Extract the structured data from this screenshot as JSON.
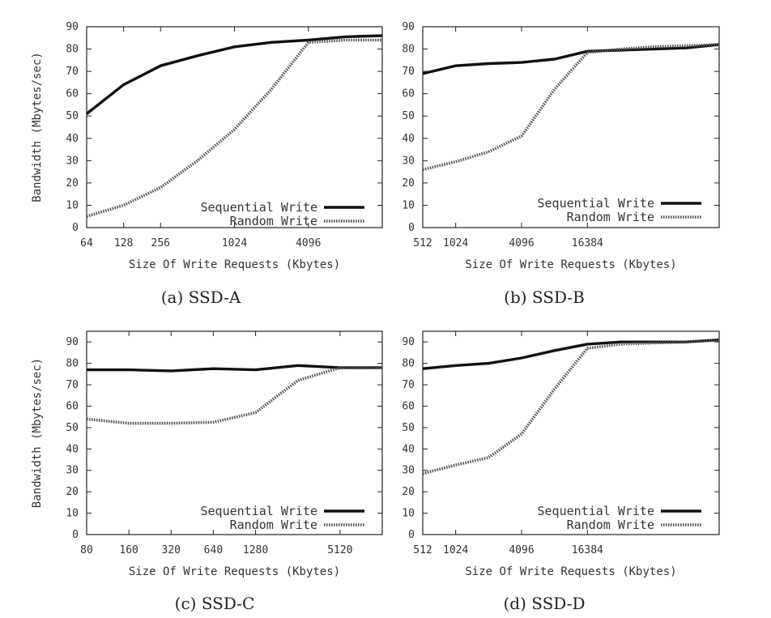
{
  "chart_data": [
    {
      "id": "a",
      "type": "line",
      "caption": "(a) SSD-A",
      "xlabel": "Size Of Write Requests (Kbytes)",
      "ylabel": "Bandwidth (Mbytes/sec)",
      "ylim": [
        0,
        90
      ],
      "yticks": [
        0,
        10,
        20,
        30,
        40,
        50,
        60,
        70,
        80,
        90
      ],
      "x_scale": "log2",
      "xlim": [
        64,
        16384
      ],
      "xticks": [
        64,
        128,
        256,
        1024,
        4096
      ],
      "legend": [
        "Sequential Write",
        "Random Write"
      ],
      "series": [
        {
          "name": "Sequential Write",
          "style": "solid",
          "x": [
            64,
            128,
            256,
            512,
            1024,
            2048,
            4096,
            8192,
            16384
          ],
          "values": [
            51,
            64,
            72.5,
            77,
            81,
            83,
            84,
            85.5,
            86
          ]
        },
        {
          "name": "Random Write",
          "style": "dotted",
          "x": [
            64,
            128,
            256,
            512,
            1024,
            2048,
            4096,
            8192,
            16384
          ],
          "values": [
            5,
            10,
            18,
            30,
            44,
            62,
            83,
            84,
            84
          ]
        }
      ]
    },
    {
      "id": "b",
      "type": "line",
      "caption": "(b) SSD-B",
      "xlabel": "Size Of Write Requests (Kbytes)",
      "ylabel": "",
      "ylim": [
        0,
        90
      ],
      "yticks": [
        0,
        10,
        20,
        30,
        40,
        50,
        60,
        70,
        80,
        90
      ],
      "x_scale": "log2",
      "xlim": [
        512,
        262144
      ],
      "xticks": [
        512,
        1024,
        4096,
        16384
      ],
      "legend": [
        "Sequential Write",
        "Random Write"
      ],
      "series": [
        {
          "name": "Sequential Write",
          "style": "solid",
          "x": [
            512,
            1024,
            2048,
            4096,
            8192,
            16384,
            32768,
            65536,
            131072,
            262144
          ],
          "values": [
            69,
            72.5,
            73.5,
            74,
            75.5,
            79,
            79.5,
            80,
            80.5,
            82
          ]
        },
        {
          "name": "Random Write",
          "style": "dotted",
          "x": [
            512,
            1024,
            2048,
            4096,
            8192,
            16384,
            32768,
            65536,
            131072,
            262144
          ],
          "values": [
            26,
            29.5,
            34,
            41,
            62,
            78.5,
            80,
            81,
            81.5,
            82
          ]
        }
      ]
    },
    {
      "id": "c",
      "type": "line",
      "caption": "(c) SSD-C",
      "xlabel": "Size Of Write Requests (Kbytes)",
      "ylabel": "Bandwidth (Mbytes/sec)",
      "ylim": [
        0,
        95
      ],
      "yticks": [
        0,
        10,
        20,
        30,
        40,
        50,
        60,
        70,
        80,
        90
      ],
      "x_scale": "log2",
      "xlim": [
        80,
        10240
      ],
      "xticks": [
        80,
        160,
        320,
        640,
        1280,
        5120
      ],
      "legend": [
        "Sequential Write",
        "Random Write"
      ],
      "series": [
        {
          "name": "Sequential Write",
          "style": "solid",
          "x": [
            80,
            160,
            320,
            640,
            1280,
            2560,
            5120,
            10240
          ],
          "values": [
            77,
            77,
            76.5,
            77.5,
            77,
            79,
            78,
            78
          ]
        },
        {
          "name": "Random Write",
          "style": "dotted",
          "x": [
            80,
            160,
            320,
            640,
            1280,
            2560,
            5120,
            10240
          ],
          "values": [
            54,
            52,
            52,
            52.5,
            57,
            72,
            78,
            78
          ]
        }
      ]
    },
    {
      "id": "d",
      "type": "line",
      "caption": "(d) SSD-D",
      "xlabel": "Size Of Write Requests (Kbytes)",
      "ylabel": "",
      "ylim": [
        0,
        95
      ],
      "yticks": [
        0,
        10,
        20,
        30,
        40,
        50,
        60,
        70,
        80,
        90
      ],
      "x_scale": "log2",
      "xlim": [
        512,
        262144
      ],
      "xticks": [
        512,
        1024,
        4096,
        16384
      ],
      "legend": [
        "Sequential Write",
        "Random Write"
      ],
      "series": [
        {
          "name": "Sequential Write",
          "style": "solid",
          "x": [
            512,
            1024,
            2048,
            4096,
            8192,
            16384,
            32768,
            65536,
            131072,
            262144
          ],
          "values": [
            77.5,
            79,
            80,
            82.5,
            86,
            89,
            90,
            90,
            90,
            91
          ]
        },
        {
          "name": "Random Write",
          "style": "dotted",
          "x": [
            512,
            1024,
            2048,
            4096,
            8192,
            16384,
            32768,
            65536,
            131072,
            262144
          ],
          "values": [
            28.5,
            32.5,
            36,
            47,
            68,
            87,
            89,
            89.5,
            90,
            91
          ]
        }
      ]
    }
  ]
}
